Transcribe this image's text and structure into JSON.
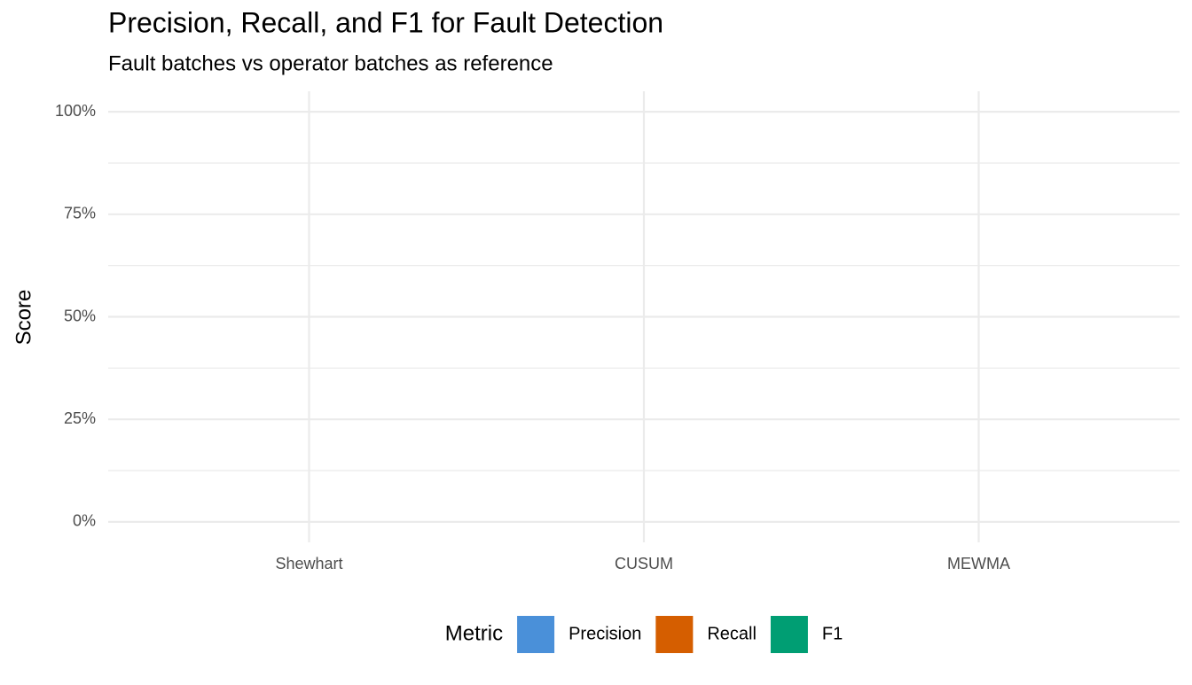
{
  "chart_data": {
    "type": "bar",
    "title": "Precision, Recall, and F1 for Fault Detection",
    "subtitle": "Fault batches vs operator batches as reference",
    "y_label": "Score",
    "legend_title": "Metric",
    "legend": "bottom",
    "grid": true,
    "categories": [
      "Shewhart",
      "CUSUM",
      "MEWMA"
    ],
    "series": [
      {
        "name": "Precision",
        "color": "#4a90d9",
        "values": [
          0,
          0,
          0
        ]
      },
      {
        "name": "Recall",
        "color": "#d55e00",
        "values": [
          0,
          0,
          0
        ]
      },
      {
        "name": "F1",
        "color": "#009e73",
        "values": [
          0,
          0,
          0
        ]
      }
    ],
    "ylim": [
      -5,
      105
    ],
    "yticks": [
      {
        "value": 0,
        "label": "0%"
      },
      {
        "value": 25,
        "label": "25%"
      },
      {
        "value": 50,
        "label": "50%"
      },
      {
        "value": 75,
        "label": "75%"
      },
      {
        "value": 100,
        "label": "100%"
      }
    ]
  }
}
